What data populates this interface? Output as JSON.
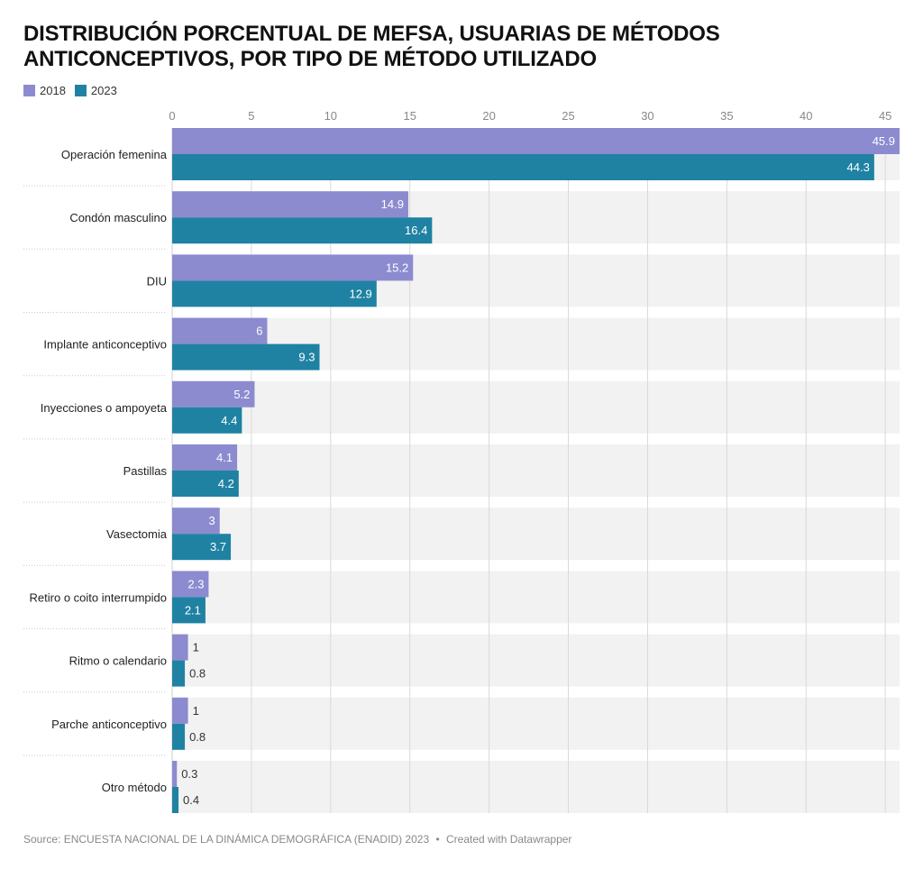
{
  "chart_data": {
    "type": "bar",
    "orientation": "horizontal",
    "title": "DISTRIBUCIÓN PORCENTUAL DE MEFSA, USUARIAS DE MÉTODOS ANTICONCEPTIVOS, POR TIPO DE MÉTODO UTILIZADO",
    "categories": [
      "Operación femenina",
      "Condón masculino",
      "DIU",
      "Implante anticonceptivo",
      "Inyecciones o ampoyeta",
      "Pastillas",
      "Vasectomia",
      "Retiro o coito interrumpido",
      "Ritmo o calendario",
      "Parche anticonceptivo",
      "Otro método"
    ],
    "series": [
      {
        "name": "2018",
        "color": "#8c8bd0",
        "values": [
          45.9,
          14.9,
          15.2,
          6,
          5.2,
          4.1,
          3,
          2.3,
          1,
          1,
          0.3
        ]
      },
      {
        "name": "2023",
        "color": "#1f82a3",
        "values": [
          44.3,
          16.4,
          12.9,
          9.3,
          4.4,
          4.2,
          3.7,
          2.1,
          0.8,
          0.8,
          0.4
        ]
      }
    ],
    "xlim": [
      0,
      45.9
    ],
    "ticks": [
      0,
      5,
      10,
      15,
      20,
      25,
      30,
      35,
      40,
      45
    ],
    "grid": true,
    "legend_position": "top-left"
  },
  "footer": {
    "source": "Source: ENCUESTA NACIONAL DE LA DINÁMICA DEMOGRÁFICA (ENADID) 2023",
    "separator": "•",
    "credit": "Created with Datawrapper"
  }
}
